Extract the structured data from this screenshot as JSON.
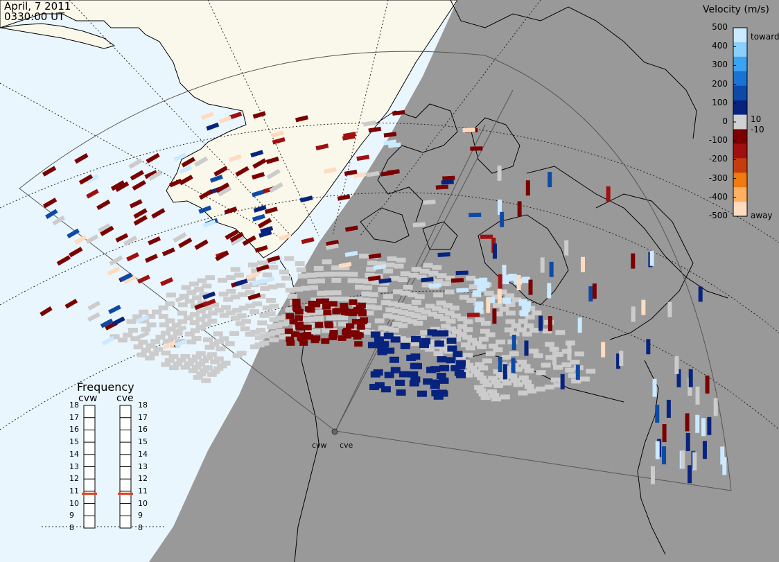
{
  "header": {
    "date": "April, 7 2011",
    "time": "0330:00 UT"
  },
  "colors": {
    "ocean": "#eaf6fe",
    "land_day": "#faf8ea",
    "night": "#999999",
    "ground_scatter": "#cccccc",
    "coast": "#000000",
    "grid": "#333333"
  },
  "velocity_scale": {
    "title": "Velocity (m/s)",
    "ticks": [
      "500",
      "400",
      "300",
      "200",
      "100",
      "0",
      "-100",
      "-200",
      "-300",
      "-400",
      "-500"
    ],
    "toward_label": "toward",
    "away_label": "away",
    "small_pos_label": "10",
    "small_neg_label": "-10",
    "colors": [
      "#cbe9ff",
      "#8ad0ff",
      "#3aa3f3",
      "#1a72d2",
      "#0d4aa8",
      "#08237e",
      "#d0d0d0",
      "#7b0000",
      "#a01010",
      "#c43c10",
      "#ee7a10",
      "#ffb060",
      "#ffdcc0"
    ]
  },
  "frequency": {
    "title": "Frequency",
    "radars": [
      "cvw",
      "cve"
    ],
    "ticks": [
      "18",
      "17",
      "16",
      "15",
      "14",
      "13",
      "12",
      "11",
      "10",
      "9",
      "8"
    ],
    "values_mhz": [
      10.8,
      10.8
    ],
    "marker_color": "#e0401a"
  },
  "radars": {
    "labels": [
      "cvw",
      "cve"
    ]
  }
}
